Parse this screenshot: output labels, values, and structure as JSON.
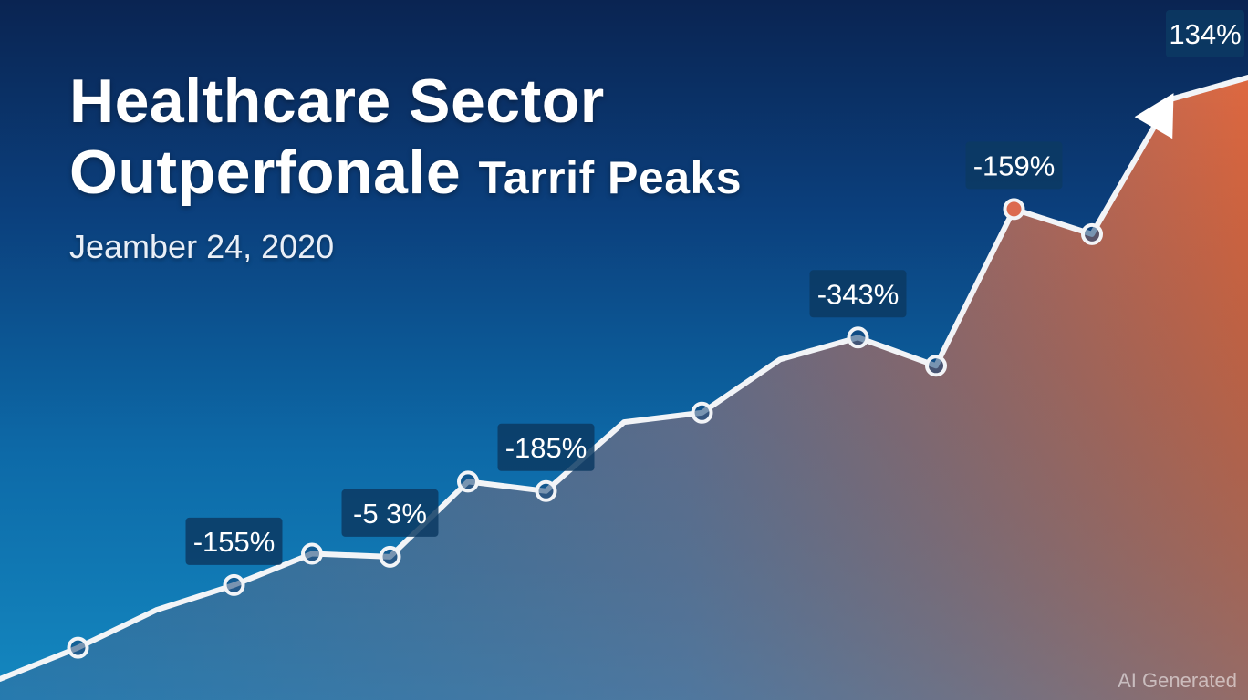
{
  "title": {
    "line1": "Healthcare Sector",
    "line2_main": "Outperfonale",
    "line2_small": "Tarrif Peaks"
  },
  "date": "Jeamber 24, 2020",
  "watermark": "AI Generated",
  "colors": {
    "bg_top": "#0a2452",
    "bg_bottom": "#1488c0",
    "line": "#f2f4f7",
    "area_low": "#4f7fa6",
    "area_high": "#e96b3e",
    "label_bg": "#0c3a63",
    "marker_fill_highlight": "#dc6a4f"
  },
  "chart_data": {
    "type": "line",
    "title": "Healthcare Sector Outperfonale Tarrif Peaks",
    "subtitle": "Jeamber 24, 2020",
    "xlabel": "",
    "ylabel": "",
    "grid": false,
    "legend": "none",
    "axes_visible": false,
    "series": [
      {
        "values": [
          0,
          10,
          22,
          30,
          40,
          39,
          63,
          60,
          82,
          85,
          102,
          109,
          100,
          150,
          142,
          185,
          192
        ]
      }
    ],
    "markers": [
      1,
      3,
      4,
      5,
      6,
      7,
      9,
      11,
      12,
      13,
      14
    ],
    "highlighted_markers": [
      13
    ],
    "annotations": [
      {
        "label": "-155%",
        "point": 3
      },
      {
        "label": "-5 3%",
        "point": 5
      },
      {
        "label": "-185%",
        "point": 7
      },
      {
        "label": "-343%",
        "point": 11
      },
      {
        "label": "-159%",
        "point": 13
      },
      {
        "label": "134%",
        "point": 16
      }
    ],
    "arrow": {
      "from_point": 14,
      "to_point": 15
    }
  }
}
